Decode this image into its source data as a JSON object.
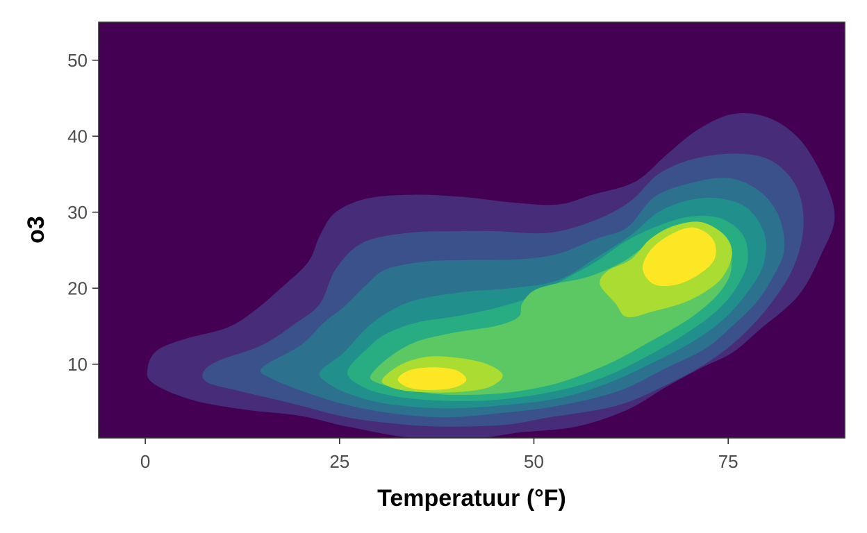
{
  "chart_data": {
    "type": "density-contour-filled",
    "xlabel": "Temperatuur (°F)",
    "ylabel": "o3",
    "xlim": [
      -6,
      90
    ],
    "ylim": [
      0.3,
      55
    ],
    "x_ticks": [
      0,
      25,
      50,
      75
    ],
    "x_tick_labels": [
      "0",
      "25",
      "50",
      "75"
    ],
    "y_ticks": [
      10,
      20,
      30,
      40,
      50
    ],
    "y_tick_labels": [
      "10",
      "20",
      "30",
      "40",
      "50"
    ],
    "grid": false,
    "legend": "none",
    "panel_border": true,
    "background_color": "#440154",
    "level_colors": [
      "#440154",
      "#472c7a",
      "#3b518b",
      "#2c718e",
      "#21908d",
      "#27ad81",
      "#5cc863",
      "#aadc32",
      "#fde725"
    ],
    "peaks": [
      {
        "x": 36.5,
        "y": 8,
        "level": "highest"
      },
      {
        "x": 69,
        "y": 23.5,
        "level": "highest"
      }
    ],
    "contours": [
      {
        "level": 1,
        "color": "#472c7a",
        "points": [
          [
            0.3,
            9.5
          ],
          [
            1.5,
            11.8
          ],
          [
            5,
            13.3
          ],
          [
            10.5,
            14.8
          ],
          [
            14,
            17
          ],
          [
            18,
            20.5
          ],
          [
            21,
            23.5
          ],
          [
            22.5,
            27
          ],
          [
            24.5,
            30
          ],
          [
            28.5,
            31.8
          ],
          [
            34.5,
            32.3
          ],
          [
            41,
            32
          ],
          [
            47,
            31.3
          ],
          [
            53,
            31
          ],
          [
            57.5,
            32.3
          ],
          [
            63,
            34
          ],
          [
            67,
            37.5
          ],
          [
            71,
            40.8
          ],
          [
            75.5,
            42.9
          ],
          [
            80,
            42.5
          ],
          [
            84,
            39.8
          ],
          [
            87,
            35
          ],
          [
            88.7,
            29.5
          ],
          [
            87,
            24.5
          ],
          [
            84,
            19
          ],
          [
            79,
            14.5
          ],
          [
            75.5,
            11.5
          ],
          [
            71.5,
            9.5
          ],
          [
            67,
            7
          ],
          [
            62,
            4
          ],
          [
            55.5,
            1.8
          ],
          [
            48,
            1
          ],
          [
            43,
            0.3
          ],
          [
            34.5,
            0.3
          ],
          [
            26,
            1.8
          ],
          [
            20,
            3.2
          ],
          [
            13,
            4
          ],
          [
            6,
            5.3
          ],
          [
            1,
            7.5
          ]
        ]
      },
      {
        "level": 2,
        "color": "#3b518b",
        "points": [
          [
            7.5,
            9
          ],
          [
            9.5,
            10.5
          ],
          [
            15,
            12.5
          ],
          [
            19.5,
            15.5
          ],
          [
            22.5,
            18
          ],
          [
            24.5,
            22.5
          ],
          [
            28,
            26
          ],
          [
            34,
            27.3
          ],
          [
            40,
            27.5
          ],
          [
            45,
            27.5
          ],
          [
            52,
            27.3
          ],
          [
            58,
            29
          ],
          [
            62.5,
            31.5
          ],
          [
            66,
            35
          ],
          [
            70.5,
            37
          ],
          [
            76,
            37.7
          ],
          [
            80.5,
            36.8
          ],
          [
            83.7,
            33.5
          ],
          [
            84.7,
            28.5
          ],
          [
            83.5,
            23
          ],
          [
            80.5,
            18
          ],
          [
            76.5,
            13.5
          ],
          [
            72,
            10
          ],
          [
            66.5,
            7
          ],
          [
            60.5,
            4.5
          ],
          [
            52,
            3
          ],
          [
            46,
            2
          ],
          [
            38,
            1.8
          ],
          [
            32,
            2.2
          ],
          [
            26,
            3
          ],
          [
            19,
            4.8
          ],
          [
            12,
            6.5
          ],
          [
            8,
            7.6
          ]
        ]
      },
      {
        "level": 3,
        "color": "#2c718e",
        "points": [
          [
            15,
            9.5
          ],
          [
            20,
            12.5
          ],
          [
            23,
            15.5
          ],
          [
            25.5,
            17.5
          ],
          [
            28.5,
            20.5
          ],
          [
            31,
            22.5
          ],
          [
            36,
            23.5
          ],
          [
            41,
            23.7
          ],
          [
            48,
            23.8
          ],
          [
            53,
            24.5
          ],
          [
            58,
            26.5
          ],
          [
            62,
            28
          ],
          [
            65.5,
            32
          ],
          [
            70,
            33.8
          ],
          [
            75,
            34.5
          ],
          [
            79,
            32.8
          ],
          [
            81.5,
            29.5
          ],
          [
            82.2,
            25
          ],
          [
            80.5,
            21
          ],
          [
            78.5,
            18
          ],
          [
            75.5,
            15
          ],
          [
            72,
            12
          ],
          [
            67,
            9.5
          ],
          [
            61,
            6.5
          ],
          [
            53,
            4.5
          ],
          [
            45,
            3.5
          ],
          [
            38.5,
            3
          ],
          [
            32,
            3.5
          ],
          [
            26.5,
            4.5
          ],
          [
            21.5,
            6
          ],
          [
            16.5,
            8
          ]
        ]
      },
      {
        "level": 4,
        "color": "#21908d",
        "points": [
          [
            22.5,
            9
          ],
          [
            25.5,
            11.5
          ],
          [
            28.5,
            14.8
          ],
          [
            31.5,
            17
          ],
          [
            35,
            18.5
          ],
          [
            41,
            19.5
          ],
          [
            47,
            20
          ],
          [
            53,
            21
          ],
          [
            58,
            24
          ],
          [
            62.5,
            27
          ],
          [
            66,
            30
          ],
          [
            70,
            31.6
          ],
          [
            74,
            31.8
          ],
          [
            77.5,
            30.5
          ],
          [
            79.7,
            27
          ],
          [
            79.5,
            23
          ],
          [
            77.5,
            19.5
          ],
          [
            74.5,
            16
          ],
          [
            70.5,
            13
          ],
          [
            65.5,
            10.3
          ],
          [
            59.5,
            7.5
          ],
          [
            53,
            5.5
          ],
          [
            45,
            4.5
          ],
          [
            38,
            4.2
          ],
          [
            31,
            4.8
          ],
          [
            26.5,
            6
          ],
          [
            23.5,
            7.5
          ]
        ]
      },
      {
        "level": 5,
        "color": "#27ad81",
        "points": [
          [
            26,
            9
          ],
          [
            28.5,
            12
          ],
          [
            31,
            14
          ],
          [
            35,
            15.5
          ],
          [
            40,
            16.3
          ],
          [
            45.5,
            17.5
          ],
          [
            50,
            19
          ],
          [
            54.5,
            21.5
          ],
          [
            58,
            23.5
          ],
          [
            62,
            26.3
          ],
          [
            66,
            28.2
          ],
          [
            70,
            29.4
          ],
          [
            74,
            29.2
          ],
          [
            76.9,
            27
          ],
          [
            77.5,
            23.5
          ],
          [
            76,
            20
          ],
          [
            73.5,
            17
          ],
          [
            69.5,
            14
          ],
          [
            64.5,
            11
          ],
          [
            59,
            8.3
          ],
          [
            53,
            6.5
          ],
          [
            45,
            5.3
          ],
          [
            38,
            5.2
          ],
          [
            32,
            5.8
          ],
          [
            28,
            7
          ]
        ]
      },
      {
        "level": 6,
        "color": "#5cc863",
        "points": [
          [
            29,
            8.5
          ],
          [
            31.5,
            11
          ],
          [
            35,
            13
          ],
          [
            40,
            14.2
          ],
          [
            45,
            15
          ],
          [
            48,
            16.2
          ],
          [
            48.5,
            18
          ],
          [
            50,
            19.7
          ],
          [
            52.8,
            20.6
          ],
          [
            57,
            21.5
          ],
          [
            61.5,
            23.5
          ],
          [
            65,
            26
          ],
          [
            69,
            27.3
          ],
          [
            72.5,
            27.1
          ],
          [
            75,
            25
          ],
          [
            75.3,
            22
          ],
          [
            73.5,
            19
          ],
          [
            70,
            16
          ],
          [
            65,
            13
          ],
          [
            59.5,
            10
          ],
          [
            53,
            7.5
          ],
          [
            46,
            6.2
          ],
          [
            38.5,
            6
          ],
          [
            33,
            6.8
          ],
          [
            30,
            7.5
          ]
        ]
      },
      {
        "level": 7,
        "color": "#aadc32",
        "points": [
          [
            30.5,
            8
          ],
          [
            33,
            10
          ],
          [
            36.5,
            11
          ],
          [
            40.5,
            10.8
          ],
          [
            44,
            10
          ],
          [
            46,
            8.5
          ],
          [
            44,
            6.9
          ],
          [
            39.5,
            6.3
          ],
          [
            34.5,
            6.4
          ],
          [
            31.5,
            7
          ]
        ]
      },
      {
        "level": 7,
        "color": "#aadc32",
        "points": [
          [
            58.5,
            20.5
          ],
          [
            59.5,
            22.3
          ],
          [
            62.5,
            23.8
          ],
          [
            65,
            26.5
          ],
          [
            68,
            28.2
          ],
          [
            71.5,
            28.7
          ],
          [
            74.5,
            27
          ],
          [
            75.5,
            24.5
          ],
          [
            74.3,
            21.5
          ],
          [
            72,
            19.5
          ],
          [
            69,
            18
          ],
          [
            65.5,
            17
          ],
          [
            62,
            16.2
          ],
          [
            60.5,
            18
          ]
        ]
      },
      {
        "level": 8,
        "color": "#fde725",
        "points": [
          [
            32.5,
            8
          ],
          [
            34,
            9.2
          ],
          [
            37,
            9.6
          ],
          [
            40,
            9.2
          ],
          [
            41.3,
            8
          ],
          [
            40,
            7
          ],
          [
            37,
            6.6
          ],
          [
            34,
            6.9
          ]
        ]
      },
      {
        "level": 8,
        "color": "#fde725",
        "points": [
          [
            64,
            22.5
          ],
          [
            65,
            25
          ],
          [
            67.5,
            27
          ],
          [
            70.5,
            28
          ],
          [
            73,
            26.5
          ],
          [
            73.3,
            24
          ],
          [
            71.5,
            22
          ],
          [
            68.5,
            20.5
          ],
          [
            65.5,
            20.5
          ]
        ]
      }
    ]
  }
}
